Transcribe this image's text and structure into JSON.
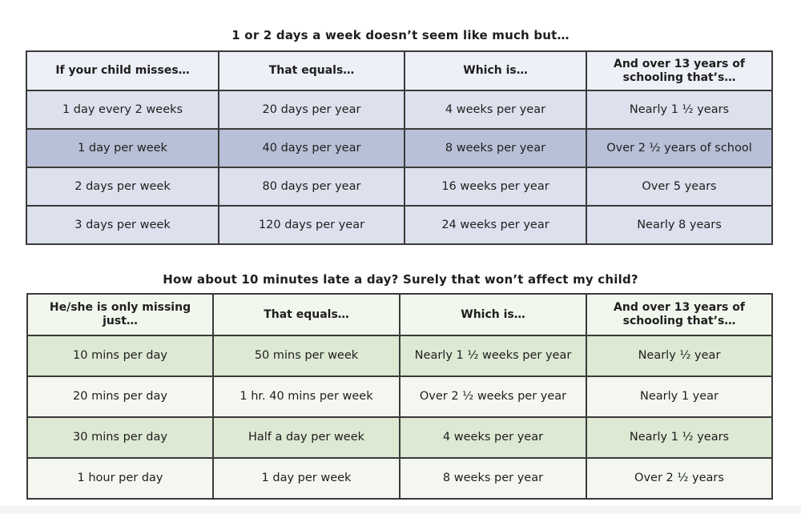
{
  "section1": {
    "title": "1 or 2 days a week doesn’t seem like much but…",
    "headers": [
      "If your child misses…",
      "That equals…",
      "Which is…",
      "And over 13 years of schooling that’s…"
    ],
    "rows": [
      [
        "1 day every 2 weeks",
        "20 days per year",
        "4 weeks per year",
        "Nearly 1 ½ years"
      ],
      [
        "1 day per week",
        "40 days per year",
        "8 weeks per year",
        "Over 2 ½ years of school"
      ],
      [
        "2 days per week",
        "80 days per year",
        "16 weeks per year",
        "Over 5 years"
      ],
      [
        "3 days per week",
        "120 days per year",
        "24 weeks per year",
        "Nearly 8 years"
      ]
    ]
  },
  "section2": {
    "title": "How about 10 minutes late a day?  Surely that won’t affect my child?",
    "headers": [
      "He/she is only missing just…",
      "That equals…",
      "Which is…",
      "And over 13 years of schooling that’s…"
    ],
    "rows": [
      [
        "10 mins per day",
        "50 mins per week",
        "Nearly 1 ½ weeks per year",
        "Nearly ½ year"
      ],
      [
        "20 mins per day",
        "1 hr. 40 mins per week",
        "Over 2 ½ weeks per year",
        "Nearly 1 year"
      ],
      [
        "30 mins per day",
        "Half a day per week",
        "4 weeks per year",
        "Nearly 1 ½ years"
      ],
      [
        "1 hour per day",
        "1 day per week",
        "8 weeks per year",
        "Over 2 ½ years"
      ]
    ]
  },
  "colors": {
    "table1_header": "#eef0f7",
    "table1_light": "#dde1ed",
    "table1_dark": "#b7c0d6",
    "table2_header": "#f2f7ee",
    "table2_light": "#f3f7f0",
    "table2_dark": "#dde9d3"
  }
}
